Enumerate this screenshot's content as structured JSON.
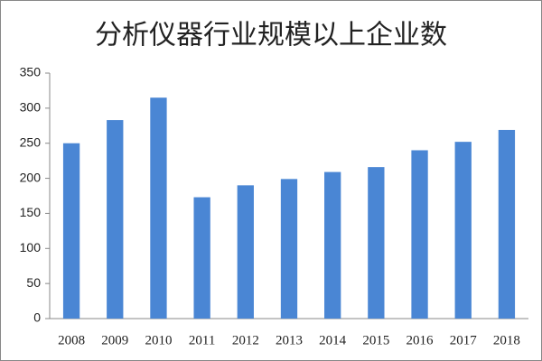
{
  "chart_data": {
    "type": "bar",
    "title": "分析仪器行业规模以上企业数",
    "categories": [
      "2008",
      "2009",
      "2010",
      "2011",
      "2012",
      "2013",
      "2014",
      "2015",
      "2016",
      "2017",
      "2018"
    ],
    "values": [
      250,
      283,
      315,
      173,
      190,
      199,
      209,
      216,
      240,
      252,
      269
    ],
    "color": "#4a86d4",
    "ylim": [
      0,
      350
    ],
    "yticks": [
      0,
      50,
      100,
      150,
      200,
      250,
      300,
      350
    ],
    "grid": false
  }
}
